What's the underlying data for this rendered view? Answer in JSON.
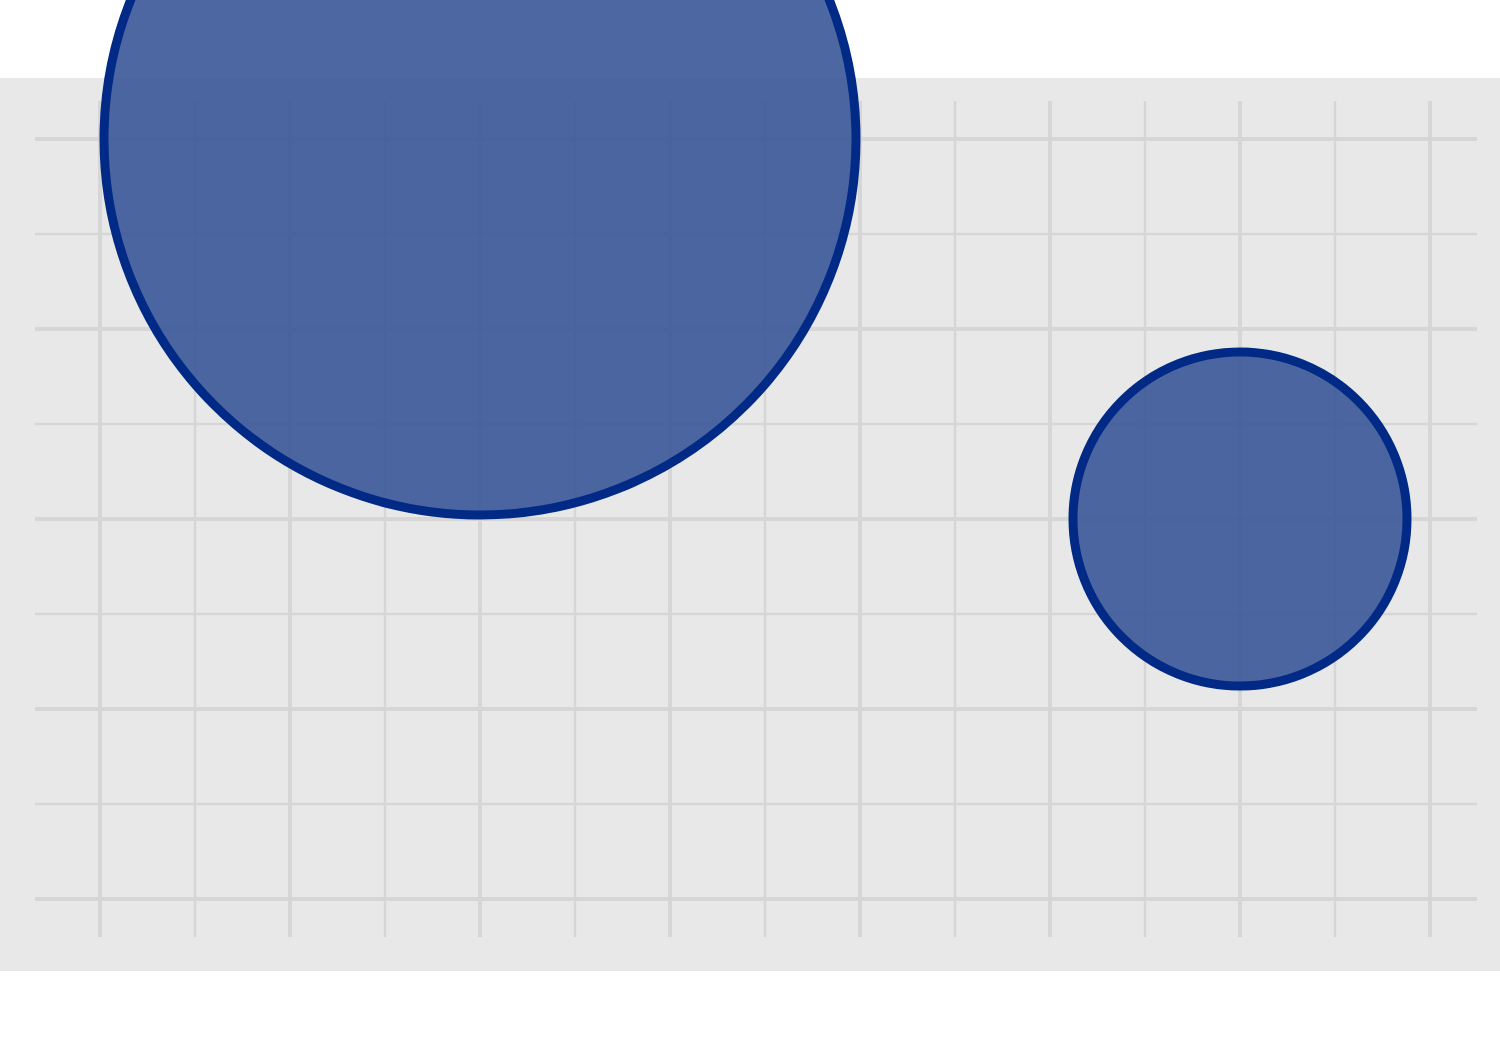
{
  "chart_data": {
    "type": "scatter",
    "title": "",
    "xlabel": "",
    "ylabel": "",
    "xlim": [
      -0.5,
      7.5
    ],
    "ylim": [
      -0.5,
      8.5
    ],
    "grid": true,
    "series": [
      {
        "points": [
          {
            "x": 2,
            "y": 4,
            "r": 2
          },
          {
            "x": 6,
            "y": 2,
            "r": 0.9
          }
        ]
      }
    ]
  },
  "colors": {
    "panel_background": "#e8e8e8",
    "grid_line": "#d6d6d6",
    "circle_fill": "#3a5799",
    "circle_stroke": "#002a86",
    "page_background": "#ffffff"
  }
}
